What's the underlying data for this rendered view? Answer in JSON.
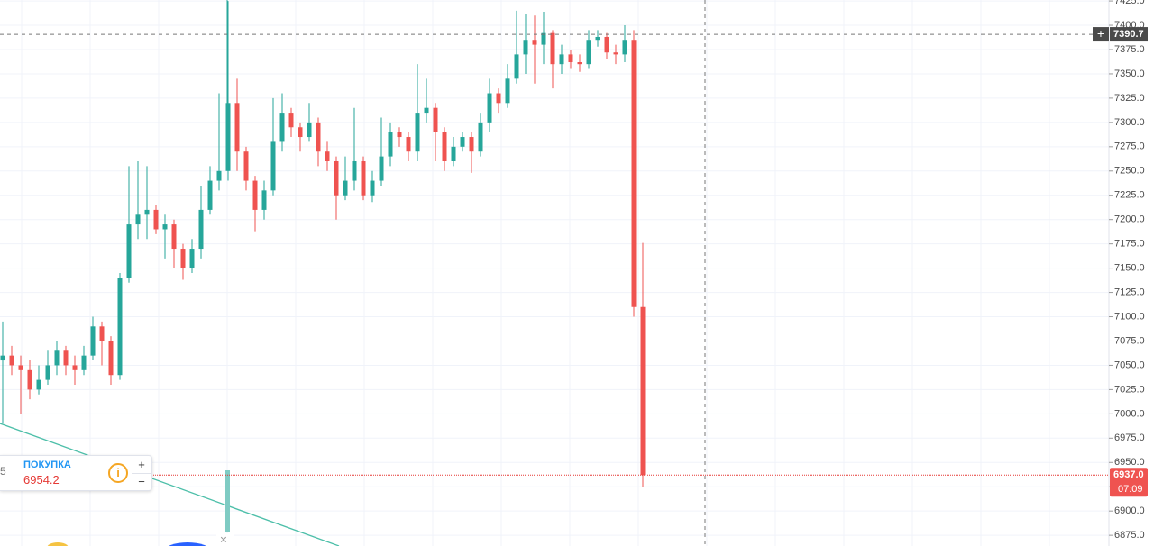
{
  "chart_data": {
    "type": "candlestick",
    "up_color": "#26a69a",
    "down_color": "#ef5350",
    "open": [
      7055,
      7060,
      7050,
      7045,
      7025,
      7035,
      7050,
      7065,
      7050,
      7045,
      7060,
      7090,
      7075,
      7040,
      7140,
      7195,
      7205,
      7210,
      7190,
      7195,
      7170,
      7150,
      7170,
      7210,
      7240,
      7250,
      7320,
      7270,
      7240,
      7210,
      7230,
      7280,
      7310,
      7295,
      7285,
      7300,
      7270,
      7260,
      7225,
      7240,
      7260,
      7225,
      7240,
      7265,
      7290,
      7285,
      7270,
      7310,
      7315,
      7290,
      7260,
      7275,
      7285,
      7270,
      7300,
      7330,
      7320,
      7345,
      7370,
      7385,
      7380,
      7392,
      7360,
      7370,
      7362,
      7360,
      7385,
      7388,
      7372,
      7370,
      7385,
      7110
    ],
    "high": [
      7095,
      7070,
      7060,
      7055,
      7050,
      7065,
      7075,
      7070,
      7060,
      7070,
      7100,
      7095,
      7080,
      7145,
      7255,
      7260,
      7255,
      7215,
      7205,
      7200,
      7175,
      7180,
      7235,
      7255,
      7330,
      7425,
      7345,
      7275,
      7245,
      7240,
      7325,
      7330,
      7315,
      7300,
      7320,
      7305,
      7280,
      7265,
      7265,
      7315,
      7265,
      7250,
      7305,
      7300,
      7295,
      7290,
      7360,
      7345,
      7320,
      7295,
      7285,
      7290,
      7290,
      7310,
      7345,
      7335,
      7360,
      7415,
      7412,
      7410,
      7414,
      7395,
      7380,
      7375,
      7370,
      7395,
      7395,
      7392,
      7380,
      7400,
      7395,
      7176
    ],
    "low": [
      6990,
      7040,
      7000,
      7015,
      7020,
      7030,
      7040,
      7040,
      7030,
      7040,
      7055,
      7050,
      7030,
      7035,
      7135,
      7180,
      7180,
      7185,
      7160,
      7150,
      7138,
      7145,
      7160,
      7205,
      7230,
      7240,
      7250,
      7230,
      7188,
      7200,
      7225,
      7270,
      7285,
      7270,
      7280,
      7255,
      7250,
      7200,
      7220,
      7230,
      7220,
      7218,
      7235,
      7255,
      7275,
      7260,
      7260,
      7300,
      7260,
      7250,
      7255,
      7270,
      7248,
      7265,
      7290,
      7310,
      7315,
      7340,
      7350,
      7340,
      7360,
      7335,
      7350,
      7355,
      7352,
      7355,
      7378,
      7365,
      7360,
      7362,
      7100,
      6925
    ],
    "close": [
      7060,
      7050,
      7045,
      7025,
      7035,
      7050,
      7065,
      7050,
      7045,
      7060,
      7090,
      7075,
      7040,
      7140,
      7195,
      7205,
      7210,
      7190,
      7195,
      7170,
      7150,
      7170,
      7210,
      7240,
      7250,
      7320,
      7270,
      7240,
      7210,
      7230,
      7280,
      7310,
      7295,
      7285,
      7300,
      7270,
      7260,
      7225,
      7240,
      7260,
      7225,
      7240,
      7265,
      7290,
      7285,
      7270,
      7310,
      7315,
      7290,
      7260,
      7275,
      7285,
      7270,
      7300,
      7330,
      7320,
      7345,
      7370,
      7385,
      7380,
      7392,
      7360,
      7370,
      7362,
      7360,
      7385,
      7388,
      7372,
      7370,
      7385,
      7110,
      6937
    ],
    "ylim": [
      6864,
      7426
    ],
    "yticks": [
      {
        "value": 6875,
        "label": "6875.0"
      },
      {
        "value": 6900,
        "label": "6900.0"
      },
      {
        "value": 6925,
        "label": "6925.0"
      },
      {
        "value": 6950,
        "label": "6950.0"
      },
      {
        "value": 6975,
        "label": "6975.0"
      },
      {
        "value": 7000,
        "label": "7000.0"
      },
      {
        "value": 7025,
        "label": "7025.0"
      },
      {
        "value": 7050,
        "label": "7050.0"
      },
      {
        "value": 7075,
        "label": "7075.0"
      },
      {
        "value": 7100,
        "label": "7100.0"
      },
      {
        "value": 7125,
        "label": "7125.0"
      },
      {
        "value": 7150,
        "label": "7150.0"
      },
      {
        "value": 7175,
        "label": "7175.0"
      },
      {
        "value": 7200,
        "label": "7200.0"
      },
      {
        "value": 7225,
        "label": "7225.0"
      },
      {
        "value": 7250,
        "label": "7250.0"
      },
      {
        "value": 7275,
        "label": "7275.0"
      },
      {
        "value": 7300,
        "label": "7300.0"
      },
      {
        "value": 7325,
        "label": "7325.0"
      },
      {
        "value": 7350,
        "label": "7350.0"
      },
      {
        "value": 7375,
        "label": "7375.0"
      },
      {
        "value": 7400,
        "label": "7400.0"
      },
      {
        "value": 7425,
        "label": "7425.0"
      }
    ],
    "grid": true,
    "crosshair_price": 7390.7,
    "last_price": {
      "value": 6937,
      "label": "6937.0"
    },
    "countdown": "07:09",
    "order_widget": {
      "side_label": "ПОКУПКА",
      "price": "6954.2",
      "edge_text": "5"
    }
  }
}
